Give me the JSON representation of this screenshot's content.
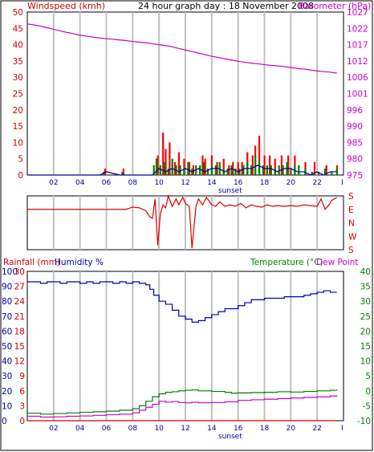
{
  "header": {
    "windspeed_label": "Windspeed (kmh)",
    "title": "24 hour graph day : 18 November 2008",
    "barometer_label": "Barometer (hPa)"
  },
  "lower_header": {
    "rainfall_label": "Rainfall (mm)",
    "humidity_label": "Humidity %",
    "temperature_label": "Temperature (°C)",
    "dewpoint_label": "Dew Point"
  },
  "colors": {
    "windspeed": "#cc0000",
    "barometer": "#cc00cc",
    "gust_bar": "#ff0000",
    "wind_bar": "#008000",
    "wind_line": "#000099",
    "direction": "#dd0000",
    "rainfall": "#cc0000",
    "humidity": "#0000aa",
    "temperature": "#008000",
    "dewpoint": "#cc00cc",
    "grid": "#c0c0c0",
    "frame": "#000000"
  },
  "chart_data": [
    {
      "type": "bar",
      "title": "24 hour graph day : 18 November 2008",
      "x_ticks": [
        "02",
        "04",
        "06",
        "08",
        "10",
        "12",
        "14",
        "16",
        "18",
        "20",
        "22",
        "I"
      ],
      "sunset_label": "sunset",
      "left_axis": {
        "label": "Windspeed (kmh)",
        "ticks": [
          "0",
          "5",
          "10",
          "15",
          "20",
          "25",
          "30",
          "35",
          "40",
          "45",
          "50"
        ],
        "range": [
          0,
          50
        ]
      },
      "right_axis": {
        "label": "Barometer (hPa)",
        "ticks": [
          "975",
          "980",
          "985",
          "990",
          "996",
          "1001",
          "1006",
          "1012",
          "1017",
          "1022",
          "1027"
        ],
        "range": [
          975,
          1027
        ]
      },
      "series": [
        {
          "kind": "line",
          "axis": "right",
          "x": [
            0.0,
            0.5,
            1.0,
            1.5,
            2.0,
            2.5,
            3.0,
            3.5,
            4.0,
            4.5,
            5.0,
            5.5,
            6.0,
            6.5,
            7.0,
            7.5,
            8.0,
            8.5,
            9.0,
            9.5,
            10.0,
            10.5,
            11.0,
            11.5,
            12.0,
            12.5,
            13.0,
            13.5,
            14.0,
            14.5,
            15.0,
            15.5,
            16.0,
            16.5,
            17.0,
            17.5,
            18.0,
            18.5,
            19.0,
            19.5,
            20.0,
            20.5,
            21.0,
            21.5,
            22.0,
            22.5,
            23.0,
            23.5
          ],
          "values": [
            1023.2,
            1022.9,
            1022.5,
            1022.0,
            1021.5,
            1021.0,
            1020.5,
            1020.1,
            1019.6,
            1019.3,
            1019.0,
            1018.7,
            1018.5,
            1018.3,
            1018.1,
            1017.9,
            1017.6,
            1017.4,
            1017.2,
            1016.9,
            1016.6,
            1016.3,
            1015.9,
            1015.4,
            1014.9,
            1014.4,
            1013.9,
            1013.4,
            1012.9,
            1012.5,
            1012.1,
            1011.7,
            1011.3,
            1011.0,
            1010.7,
            1010.5,
            1010.2,
            1010.0,
            1009.8,
            1009.6,
            1009.3,
            1009.0,
            1008.8,
            1008.5,
            1008.2,
            1008.0,
            1007.8,
            1007.5
          ]
        },
        {
          "kind": "gust_bars",
          "axis": "left",
          "x": [
            5.9,
            7.3,
            9.9,
            10.3,
            10.5,
            10.8,
            11.2,
            11.5,
            11.9,
            12.3,
            12.6,
            13.3,
            13.5,
            14.0,
            14.4,
            14.9,
            15.3,
            15.6,
            16.0,
            16.3,
            16.7,
            17.1,
            17.3,
            17.6,
            18.0,
            18.4,
            18.8,
            19.3,
            19.8,
            20.3,
            21.1,
            21.8,
            22.7,
            23.5
          ],
          "values": [
            2,
            2,
            6,
            13,
            8,
            10,
            4,
            7,
            5,
            4,
            3,
            6,
            5,
            6,
            4,
            5,
            3,
            4,
            4,
            4,
            7,
            6,
            9,
            12,
            6,
            6,
            5,
            6,
            6,
            6,
            4,
            4,
            3,
            3
          ]
        },
        {
          "kind": "wind_bars",
          "axis": "left",
          "x": [
            5.8,
            7.2,
            9.6,
            9.8,
            10.1,
            10.4,
            10.7,
            11.0,
            11.3,
            11.6,
            11.9,
            12.2,
            12.5,
            12.8,
            13.1,
            13.4,
            13.7,
            14.0,
            14.3,
            14.6,
            14.9,
            15.2,
            15.5,
            15.8,
            16.1,
            16.4,
            16.7,
            17.0,
            17.3,
            17.6,
            17.9,
            18.2,
            18.5,
            18.8,
            19.1,
            19.4,
            19.7,
            20.0,
            20.3,
            20.6,
            21.1,
            21.6,
            22.1,
            22.6,
            23.1,
            23.5
          ],
          "values": [
            1,
            1,
            3,
            5,
            3,
            4,
            2,
            5,
            3,
            3,
            2,
            4,
            2,
            3,
            3,
            4,
            2,
            3,
            3,
            4,
            2,
            2,
            3,
            2,
            2,
            3,
            4,
            3,
            6,
            4,
            3,
            3,
            3,
            2,
            3,
            3,
            4,
            2,
            3,
            3,
            2,
            1,
            1,
            2,
            1,
            2
          ]
        },
        {
          "kind": "wind_line",
          "axis": "left",
          "x": [
            0,
            5.5,
            6.0,
            7.0,
            7.5,
            9.5,
            10.0,
            10.5,
            11.0,
            11.5,
            12.0,
            12.5,
            13.0,
            13.5,
            14.0,
            14.5,
            15.0,
            15.5,
            16.0,
            16.5,
            17.0,
            17.5,
            18.0,
            18.5,
            19.0,
            19.5,
            20.0,
            20.5,
            21.0,
            21.5,
            22.0,
            22.5,
            23.0,
            23.5
          ],
          "values": [
            0,
            0,
            1,
            0,
            0,
            0,
            2,
            1,
            2,
            1,
            2,
            1,
            2,
            1,
            2,
            2,
            1,
            2,
            1,
            2,
            2,
            3,
            2,
            2,
            1,
            2,
            2,
            1,
            1,
            0,
            1,
            0,
            1,
            1
          ]
        }
      ]
    },
    {
      "type": "line",
      "x_ticks": [],
      "y_ticks": [
        "S",
        "E",
        "N",
        "W",
        "S"
      ],
      "series": [
        {
          "x": [
            0,
            3.5,
            7.5,
            8.0,
            8.5,
            9.0,
            9.3,
            9.5,
            9.7,
            9.9,
            10.1,
            10.3,
            10.5,
            10.7,
            11.0,
            11.3,
            11.5,
            11.8,
            12.0,
            12.3,
            12.5,
            12.8,
            13.0,
            13.3,
            13.6,
            14.0,
            14.3,
            14.6,
            15.0,
            15.4,
            15.8,
            16.2,
            16.6,
            17.0,
            17.4,
            17.8,
            18.2,
            18.6,
            19.0,
            19.5,
            20.0,
            20.5,
            21.0,
            21.5,
            22.0,
            22.3,
            22.6,
            22.9,
            23.1,
            23.3,
            23.5
          ],
          "values": [
            270,
            270,
            270,
            255,
            260,
            280,
            320,
            330,
            200,
            150,
            300,
            240,
            260,
            180,
            250,
            200,
            240,
            190,
            230,
            250,
            170,
            250,
            200,
            240,
            190,
            240,
            250,
            220,
            250,
            240,
            250,
            230,
            260,
            240,
            250,
            255,
            240,
            250,
            245,
            250,
            245,
            250,
            240,
            245,
            250,
            200,
            270,
            240,
            210,
            200,
            190
          ]
        }
      ]
    },
    {
      "type": "line",
      "x_ticks": [
        "02",
        "04",
        "06",
        "08",
        "10",
        "12",
        "14",
        "16",
        "18",
        "20",
        "22",
        "I"
      ],
      "sunset_label": "sunset",
      "humidity_axis": {
        "label": "Humidity %",
        "ticks": [
          "0",
          "10",
          "20",
          "30",
          "40",
          "50",
          "60",
          "70",
          "80",
          "90",
          "100"
        ],
        "range": [
          0,
          100
        ]
      },
      "rainfall_axis": {
        "label": "Rainfall (mm)",
        "ticks": [
          "0",
          "3",
          "6",
          "9",
          "12",
          "15",
          "18",
          "21",
          "24",
          "27",
          "30"
        ],
        "range": [
          0,
          30
        ]
      },
      "temperature_axis": {
        "label": "Temperature (°C)",
        "ticks": [
          "-10",
          "-5",
          "0",
          "5",
          "10",
          "15",
          "20",
          "25",
          "30",
          "35",
          "40"
        ],
        "range": [
          -10,
          40
        ]
      },
      "series": [
        {
          "name": "Humidity %",
          "axis": "humidity",
          "x": [
            0,
            0.5,
            1.0,
            1.5,
            2.0,
            2.5,
            3.0,
            3.5,
            4.0,
            4.5,
            5.0,
            5.5,
            6.0,
            6.5,
            7.0,
            7.5,
            8.0,
            8.5,
            9.0,
            9.3,
            9.6,
            10.0,
            10.5,
            11.0,
            11.5,
            12.0,
            12.5,
            13.0,
            13.5,
            14.0,
            14.5,
            15.0,
            15.5,
            16.0,
            16.5,
            17.0,
            17.5,
            18.0,
            18.5,
            19.0,
            19.5,
            20.0,
            20.5,
            21.0,
            21.5,
            22.0,
            22.5,
            23.0,
            23.5
          ],
          "values": [
            93,
            93,
            92,
            93,
            93,
            92,
            93,
            93,
            92,
            93,
            92,
            93,
            93,
            92,
            93,
            92,
            93,
            92,
            91,
            88,
            84,
            80,
            78,
            74,
            70,
            68,
            66,
            67,
            69,
            71,
            73,
            75,
            75,
            77,
            79,
            81,
            81,
            82,
            82,
            82,
            83,
            83,
            83,
            84,
            85,
            86,
            87,
            86,
            86
          ]
        },
        {
          "name": "Temperature (°C)",
          "axis": "temperature",
          "x": [
            0,
            1,
            2,
            3,
            4,
            5,
            6,
            7,
            8,
            8.5,
            9.0,
            9.5,
            10.0,
            10.5,
            11.0,
            11.5,
            12.0,
            12.5,
            13.0,
            14.0,
            15.0,
            15.5,
            16.0,
            17.0,
            18.0,
            19.0,
            20.0,
            21.0,
            22.0,
            23.0,
            23.5
          ],
          "values": [
            -7.5,
            -7.8,
            -7.6,
            -7.4,
            -7.2,
            -7.0,
            -6.8,
            -6.5,
            -6.0,
            -5.0,
            -3.5,
            -2.0,
            -1.0,
            -0.5,
            -0.3,
            0,
            0.2,
            0.3,
            0,
            -0.2,
            -0.5,
            -0.8,
            -0.7,
            -0.6,
            -0.5,
            -0.3,
            -0.4,
            -0.2,
            0,
            0.2,
            0.4
          ]
        },
        {
          "name": "Dew Point",
          "axis": "temperature",
          "x": [
            0,
            1,
            2,
            3,
            4,
            5,
            6,
            7,
            8,
            8.5,
            9.0,
            9.5,
            10.0,
            10.5,
            11.0,
            11.5,
            12.0,
            12.5,
            13.0,
            14.0,
            15.0,
            16.0,
            17.0,
            18.0,
            19.0,
            20.0,
            21.0,
            22.0,
            23.0,
            23.5
          ],
          "values": [
            -8.5,
            -8.8,
            -8.7,
            -8.5,
            -8.4,
            -8.2,
            -8.0,
            -7.8,
            -7.4,
            -6.5,
            -5.5,
            -4.5,
            -3.5,
            -3.8,
            -3.6,
            -3.9,
            -4.0,
            -3.8,
            -4.0,
            -3.9,
            -3.7,
            -3.2,
            -3.0,
            -2.8,
            -2.6,
            -2.4,
            -2.2,
            -2.0,
            -1.7,
            -1.5
          ]
        },
        {
          "name": "Rainfall (mm)",
          "axis": "rainfall",
          "x": [
            0,
            23.5
          ],
          "values": [
            0,
            0
          ]
        }
      ]
    }
  ]
}
